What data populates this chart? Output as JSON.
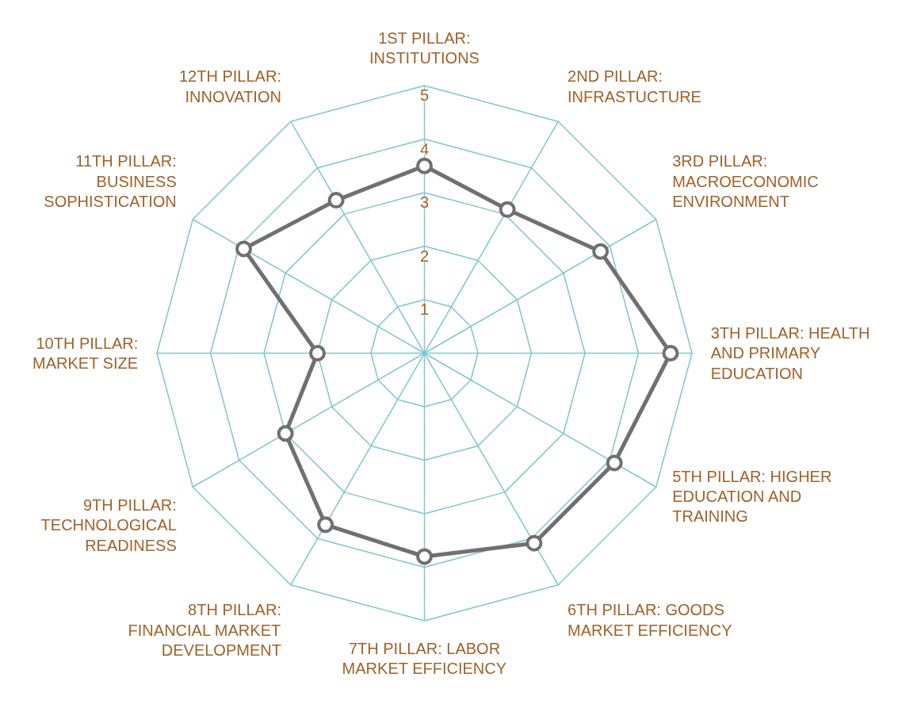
{
  "chart_data": {
    "type": "radar",
    "categories": [
      "1ST PILLAR: INSTITUTIONS",
      "2ND PILLAR: INFRASTUCTURE",
      "3RD PILLAR: MACROECONOMIC ENVIRONMENT",
      "3TH PILLAR: HEALTH AND PRIMARY EDUCATION",
      "5TH PILLAR: HIGHER EDUCATION AND TRAINING",
      "6TH PILLAR: GOODS MARKET EFFICIENCY",
      "7TH PILLAR: LABOR MARKET EFFICIENCY",
      "8TH PILLAR: FINANCIAL MARKET DEVELOPMENT",
      "9TH PILLAR: TECHNOLOGICAL READINESS",
      "10TH PILLAR: MARKET SIZE",
      "11TH PILLAR: BUSINESS SOPHISTICATION",
      "12TH PILLAR: INNOVATION"
    ],
    "series": [
      {
        "color": "#707070",
        "values": [
          3.5,
          3.1,
          3.8,
          4.6,
          4.1,
          4.1,
          3.8,
          3.7,
          3.0,
          2.0,
          3.9,
          3.3
        ]
      }
    ],
    "ylim": [
      0,
      5
    ],
    "yticks": [
      1,
      2,
      3,
      4,
      5
    ],
    "grid": true,
    "marker": "circle",
    "line_style": "solid"
  }
}
